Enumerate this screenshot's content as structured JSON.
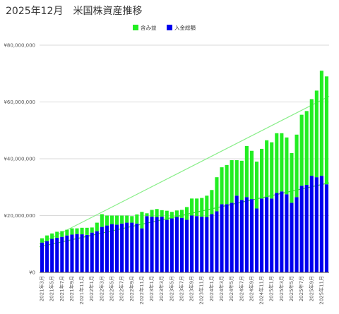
{
  "chart_data": {
    "type": "bar",
    "stacked": true,
    "title": "2025年12月　米国株資産推移",
    "xlabel": "",
    "ylabel": "",
    "ylim": [
      0,
      80000000
    ],
    "yticks": [
      0,
      20000000,
      40000000,
      60000000,
      80000000
    ],
    "ytick_labels": [
      "¥0",
      "¥20,000,000",
      "¥40,000,000",
      "¥60,000,000",
      "¥80,000,000"
    ],
    "grid": true,
    "legend_position": "top-center",
    "categories": [
      "2021年3月",
      "2021年4月",
      "2021年5月",
      "2021年6月",
      "2021年7月",
      "2021年8月",
      "2021年9月",
      "2021年10月",
      "2021年11月",
      "2021年12月",
      "2022年1月",
      "2022年2月",
      "2022年3月",
      "2022年4月",
      "2022年5月",
      "2022年6月",
      "2022年7月",
      "2022年8月",
      "2022年9月",
      "2022年10月",
      "2022年11月",
      "2022年12月",
      "2023年1月",
      "2023年2月",
      "2023年3月",
      "2023年4月",
      "2023年5月",
      "2023年6月",
      "2023年7月",
      "2023年8月",
      "2023年9月",
      "2023年10月",
      "2023年11月",
      "2023年12月",
      "2024年1月",
      "2024年2月",
      "2024年3月",
      "2024年4月",
      "2024年5月",
      "2024年6月",
      "2024年7月",
      "2024年8月",
      "2024年9月",
      "2024年10月",
      "2024年11月",
      "2024年12月",
      "2025年1月",
      "2025年2月",
      "2025年3月",
      "2025年4月",
      "2025年5月",
      "2025年6月",
      "2025年7月",
      "2025年8月",
      "2025年9月",
      "2025年10月",
      "2025年11月",
      "2025年12月"
    ],
    "tick_labels": [
      "2021年3月",
      "",
      "2021年5月",
      "",
      "2021年7月",
      "",
      "2021年9月",
      "",
      "2021年11月",
      "",
      "2022年1月",
      "",
      "2022年3月",
      "",
      "2022年5月",
      "",
      "2022年7月",
      "",
      "2022年9月",
      "",
      "2022年11月",
      "",
      "2023年1月",
      "",
      "2023年3月",
      "",
      "2023年5月",
      "",
      "2023年7月",
      "",
      "2023年9月",
      "",
      "2023年11月",
      "",
      "2024年1月",
      "",
      "2024年3月",
      "",
      "2024年5月",
      "",
      "2024年7月",
      "",
      "2024年9月",
      "",
      "2024年11月",
      "",
      "2025年1月",
      "",
      "2025年3月",
      "",
      "2025年5月",
      "",
      "2025年7月",
      "",
      "2025年9月",
      "",
      "2025年11月",
      ""
    ],
    "series": [
      {
        "name": "入金総額",
        "color": "#0000ee",
        "values": [
          10500000,
          11000000,
          11800000,
          12200000,
          12500000,
          13000000,
          13300000,
          13500000,
          13400000,
          13200000,
          14000000,
          14500000,
          16000000,
          16500000,
          17000000,
          16800000,
          17200000,
          17500000,
          17500000,
          17200000,
          15500000,
          19800000,
          19600000,
          19500000,
          19600000,
          18500000,
          19000000,
          19500000,
          19200000,
          18500000,
          20000000,
          19800000,
          19600000,
          19500000,
          20500000,
          21500000,
          24000000,
          24000000,
          24500000,
          27000000,
          25500000,
          26500000,
          25800000,
          22500000,
          26000000,
          26500000,
          26000000,
          28000000,
          28500000,
          27500000,
          24500000,
          26500000,
          30500000,
          30800000,
          34000000,
          33500000,
          34000000,
          31000000
        ]
      },
      {
        "name": "含み益",
        "color": "#22ee22",
        "values": [
          1500000,
          2000000,
          1900000,
          2100000,
          2000000,
          2000000,
          2200000,
          2000000,
          2300000,
          2500000,
          1800000,
          3000000,
          4500000,
          3500000,
          3000000,
          3200000,
          2800000,
          2500000,
          2300000,
          3200000,
          5800000,
          1000000,
          2400000,
          2800000,
          2300000,
          3200000,
          2300000,
          2300000,
          2800000,
          4500000,
          6000000,
          6200000,
          6600000,
          7500000,
          8500000,
          12000000,
          13000000,
          13800000,
          15000000,
          12500000,
          13800000,
          18000000,
          17000000,
          16500000,
          17500000,
          20000000,
          19800000,
          21000000,
          20500000,
          20000000,
          17500000,
          22000000,
          25000000,
          26000000,
          27000000,
          30500000,
          37000000,
          38000000
        ]
      }
    ],
    "legend": [
      "含み益",
      "入金総額"
    ],
    "trendlines": [
      {
        "series": "total",
        "color": "#88ee88",
        "from": 10000000,
        "to": 62000000
      },
      {
        "series": "deposit",
        "color": "#44cc44",
        "from": 9000000,
        "to": 31500000
      }
    ]
  },
  "colors": {
    "grid": "#cccccc",
    "axis": "#444444"
  }
}
